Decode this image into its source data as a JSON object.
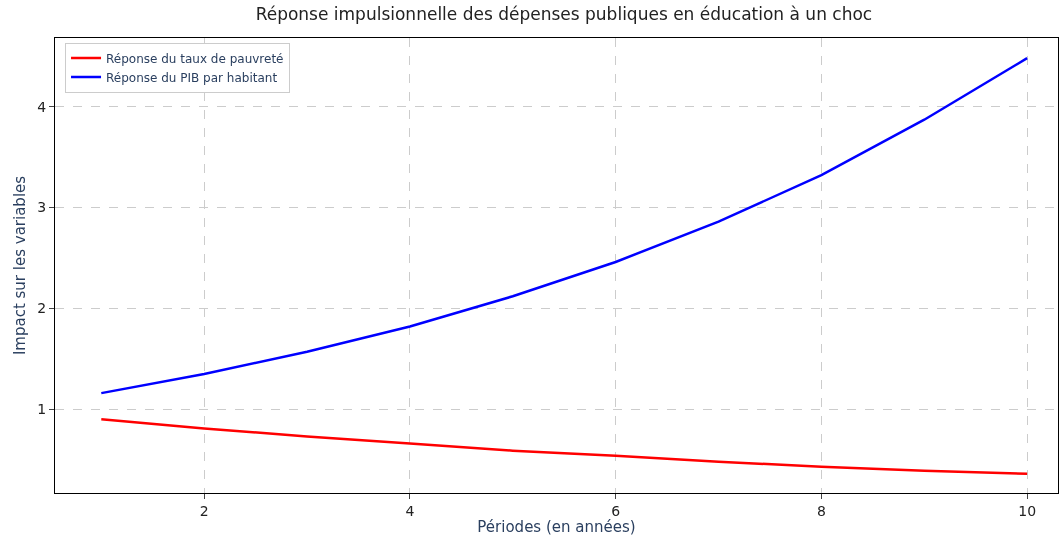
{
  "chart_data": {
    "type": "line",
    "title": "Réponse impulsionnelle des dépenses publiques en éducation à un choc",
    "xlabel": "Périodes (en années)",
    "ylabel": "Impact sur les variables",
    "x": [
      1,
      2,
      3,
      4,
      5,
      6,
      7,
      8,
      9,
      10
    ],
    "series": [
      {
        "name": "Réponse du taux de pauvreté",
        "color": "#ff0000",
        "values": [
          0.9,
          0.81,
          0.73,
          0.66,
          0.59,
          0.54,
          0.48,
          0.43,
          0.39,
          0.36
        ]
      },
      {
        "name": "Réponse du PIB par habitant",
        "color": "#0000ff",
        "values": [
          1.16,
          1.35,
          1.57,
          1.82,
          2.12,
          2.46,
          2.86,
          3.32,
          3.87,
          4.48
        ]
      }
    ],
    "xlim": [
      0.55,
      10.3
    ],
    "xticks": [
      2,
      4,
      6,
      8,
      10
    ],
    "ylim": [
      0.17,
      4.68
    ],
    "yticks": [
      1,
      2,
      3,
      4
    ],
    "grid": true,
    "legend": "top left",
    "marker": "none",
    "line_style": "solid"
  }
}
